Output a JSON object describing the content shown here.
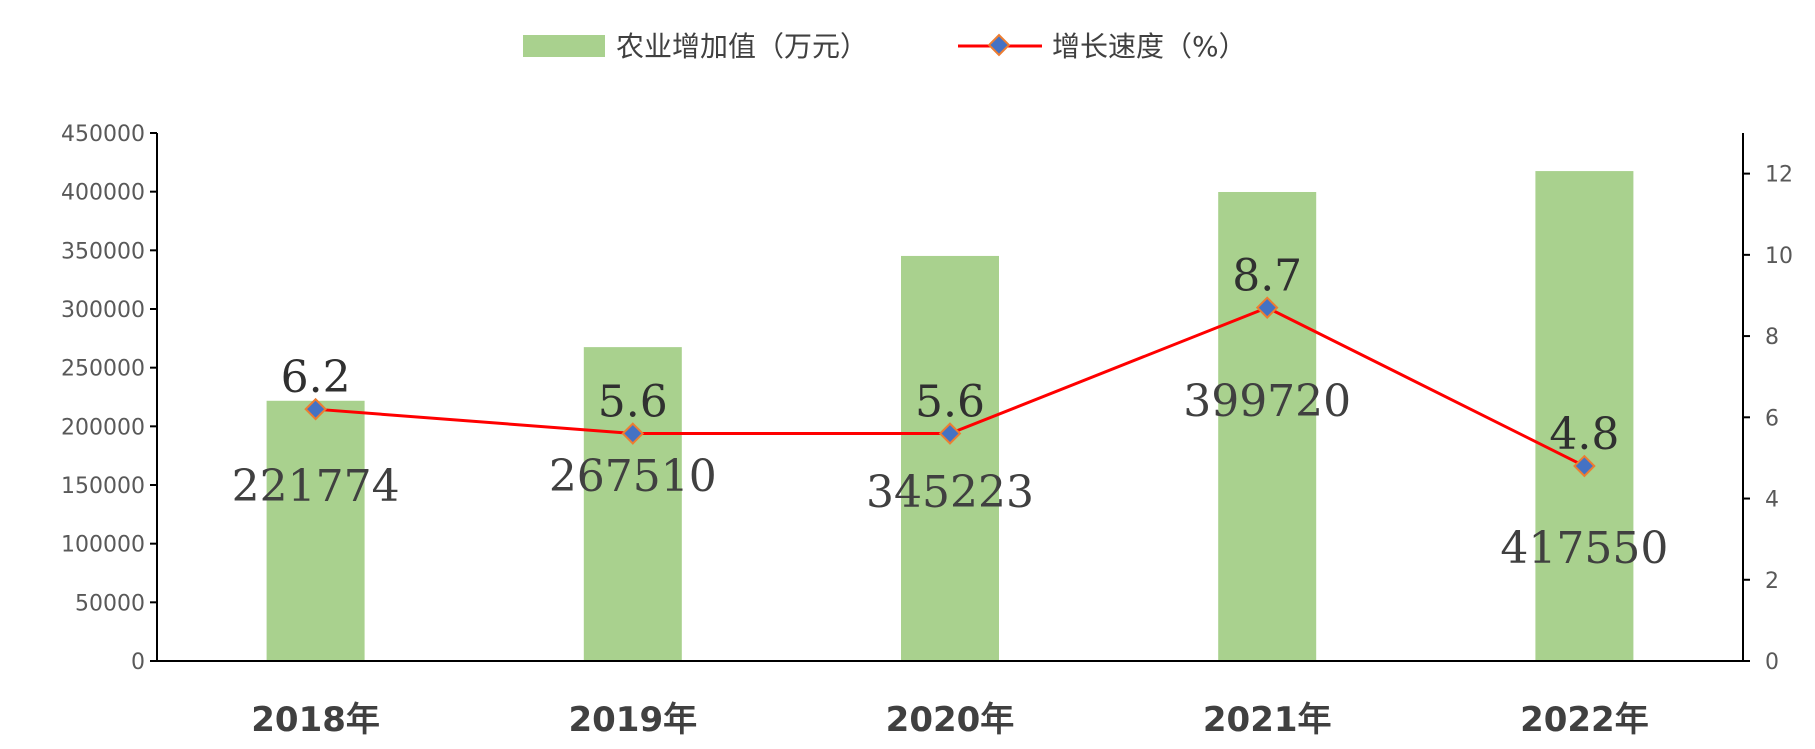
{
  "colors": {
    "bar": "#a9d18e",
    "line": "#ff0000",
    "marker_fill": "#4472c4",
    "marker_stroke": "#ed7d31"
  },
  "legend": {
    "bar_label": "农业增加值（万元）",
    "line_label": "增长速度（%）"
  },
  "chart_data": {
    "type": "bar",
    "categories": [
      "2018年",
      "2019年",
      "2020年",
      "2021年",
      "2022年"
    ],
    "series": [
      {
        "name": "农业增加值（万元）",
        "type": "bar",
        "axis": "left",
        "values": [
          221774,
          267510,
          345223,
          399720,
          417550
        ],
        "labels": [
          "221774",
          "267510",
          "345223",
          "399720",
          "417550"
        ]
      },
      {
        "name": "增长速度（%）",
        "type": "line",
        "axis": "right",
        "values": [
          6.2,
          5.6,
          5.6,
          8.7,
          4.8
        ],
        "labels": [
          "6.2",
          "5.6",
          "5.6",
          "8.7",
          "4.8"
        ]
      }
    ],
    "y_left": {
      "min": 0,
      "max": 450000,
      "step": 50000,
      "ticks": [
        "0",
        "50000",
        "100000",
        "150000",
        "200000",
        "250000",
        "300000",
        "350000",
        "400000",
        "450000"
      ]
    },
    "y_right": {
      "min": 0,
      "max": 13,
      "step": 2,
      "ticks": [
        "0",
        "2",
        "4",
        "6",
        "8",
        "10",
        "12"
      ]
    },
    "legend_position": "top-center",
    "grid": false
  }
}
